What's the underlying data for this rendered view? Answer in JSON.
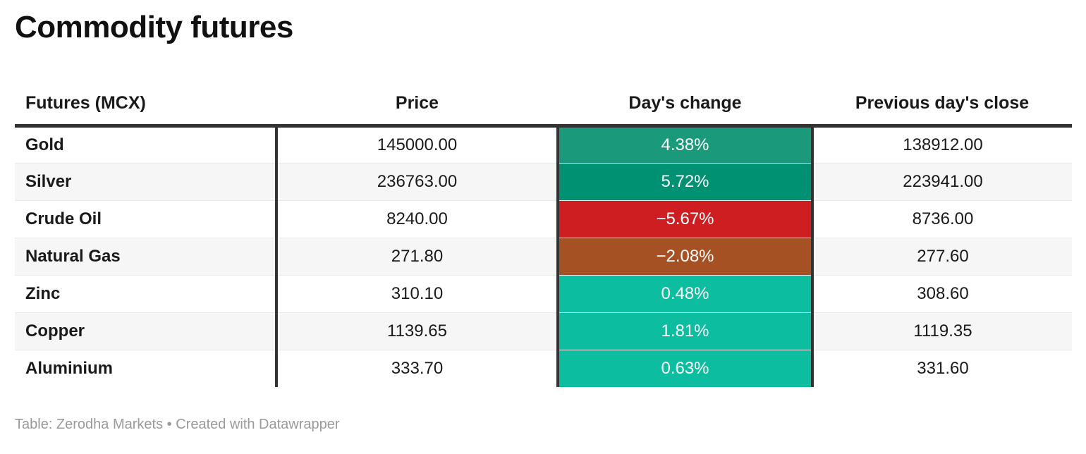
{
  "title": "Commodity futures",
  "footer": "Table: Zerodha Markets • Created with Datawrapper",
  "colors": {
    "positive_strong": "#1b9a7b",
    "positive_stronger": "#009072",
    "negative_strong": "#ce1e22",
    "negative_mild": "#a65123",
    "positive_mild": "#0dbd9f",
    "divider_dark": "#333333",
    "row_alt": "#f6f6f6",
    "footer_gray": "#9a9a9a"
  },
  "table": {
    "headers": {
      "futures": "Futures (MCX)",
      "price": "Price",
      "change": "Day's change",
      "prev_close": "Previous day's close"
    },
    "rows": [
      {
        "name": "Gold",
        "price": "145000.00",
        "change": "4.38%",
        "change_color": "#1b9a7b",
        "prev_close": "138912.00"
      },
      {
        "name": "Silver",
        "price": "236763.00",
        "change": "5.72%",
        "change_color": "#009072",
        "prev_close": "223941.00"
      },
      {
        "name": "Crude Oil",
        "price": "8240.00",
        "change": "−5.67%",
        "change_color": "#ce1e22",
        "prev_close": "8736.00"
      },
      {
        "name": "Natural Gas",
        "price": "271.80",
        "change": "−2.08%",
        "change_color": "#a65123",
        "prev_close": "277.60"
      },
      {
        "name": "Zinc",
        "price": "310.10",
        "change": "0.48%",
        "change_color": "#0dbd9f",
        "prev_close": "308.60"
      },
      {
        "name": "Copper",
        "price": "1139.65",
        "change": "1.81%",
        "change_color": "#0dbd9f",
        "prev_close": "1119.35"
      },
      {
        "name": "Aluminium",
        "price": "333.70",
        "change": "0.63%",
        "change_color": "#0dbd9f",
        "prev_close": "331.60"
      }
    ]
  },
  "chart_data": {
    "type": "table",
    "title": "Commodity futures",
    "columns": [
      "Futures (MCX)",
      "Price",
      "Day's change",
      "Previous day's close"
    ],
    "rows": [
      [
        "Gold",
        145000.0,
        "4.38%",
        138912.0
      ],
      [
        "Silver",
        236763.0,
        "5.72%",
        223941.0
      ],
      [
        "Crude Oil",
        8240.0,
        "-5.67%",
        8736.0
      ],
      [
        "Natural Gas",
        271.8,
        "-2.08%",
        277.6
      ],
      [
        "Zinc",
        310.1,
        "0.48%",
        308.6
      ],
      [
        "Copper",
        1139.65,
        "1.81%",
        1119.35
      ],
      [
        "Aluminium",
        333.7,
        "0.63%",
        331.6
      ]
    ],
    "notes": "Day's change cells are color-coded: strong gains dark green, mild gains teal, losses red/rust",
    "source": "Table: Zerodha Markets • Created with Datawrapper"
  }
}
